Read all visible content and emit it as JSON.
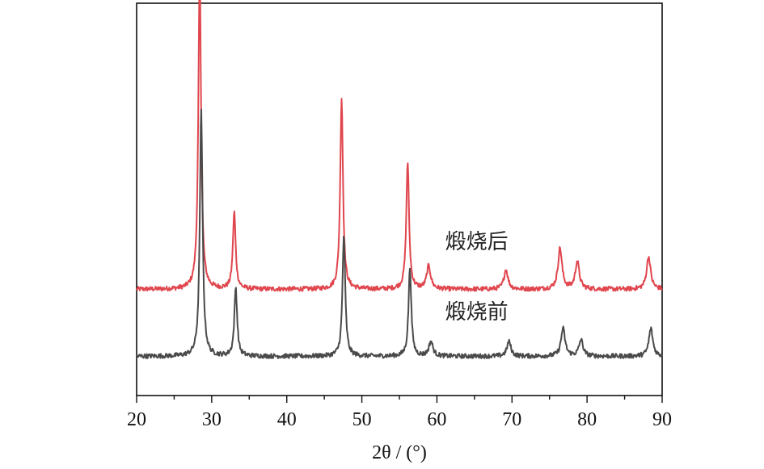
{
  "chart_data": {
    "type": "line",
    "title": "",
    "xlabel": "2θ / (°)",
    "ylabel": "",
    "xlim": [
      20,
      90
    ],
    "ylim": [
      0,
      12
    ],
    "x_ticks": [
      "20",
      "30",
      "40",
      "50",
      "60",
      "70",
      "80",
      "90"
    ],
    "x_minor_step": 5,
    "y_ticks_shown": false,
    "grid": false,
    "legend": "none",
    "series": [
      {
        "name": "煅烧后",
        "color": "#e0464e",
        "baseline": 3.25,
        "peaks": [
          {
            "x": 28.4,
            "y": 9.6
          },
          {
            "x": 33.0,
            "y": 2.35
          },
          {
            "x": 47.3,
            "y": 5.85
          },
          {
            "x": 56.1,
            "y": 3.9
          },
          {
            "x": 58.9,
            "y": 0.7
          },
          {
            "x": 69.2,
            "y": 0.6
          },
          {
            "x": 76.4,
            "y": 1.25
          },
          {
            "x": 78.7,
            "y": 0.85
          },
          {
            "x": 88.2,
            "y": 1.0
          }
        ]
      },
      {
        "name": "煅烧前",
        "color": "#4a4a4a",
        "baseline": 1.2,
        "peaks": [
          {
            "x": 28.6,
            "y": 7.5
          },
          {
            "x": 33.2,
            "y": 2.1
          },
          {
            "x": 47.6,
            "y": 3.7
          },
          {
            "x": 56.4,
            "y": 2.7
          },
          {
            "x": 59.2,
            "y": 0.45
          },
          {
            "x": 69.6,
            "y": 0.45
          },
          {
            "x": 76.8,
            "y": 0.85
          },
          {
            "x": 79.2,
            "y": 0.5
          },
          {
            "x": 88.5,
            "y": 0.85
          }
        ]
      }
    ],
    "annotations": [
      {
        "text": "煅烧后",
        "x": 69.5,
        "y": 4.5
      },
      {
        "text": "煅烧前",
        "x": 69.5,
        "y": 2.35
      }
    ]
  }
}
